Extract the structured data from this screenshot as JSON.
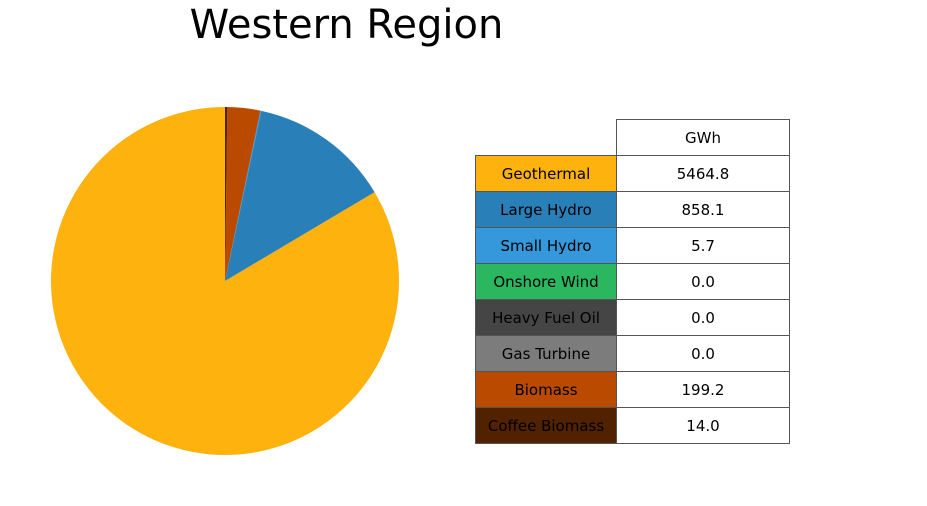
{
  "chart_data": {
    "type": "pie",
    "title": "Western Region",
    "table_header": "GWh",
    "slices": [
      {
        "label": "Geothermal",
        "value": 5464.8,
        "value_text": "5464.8",
        "color": "#fdb20e"
      },
      {
        "label": "Large Hydro",
        "value": 858.1,
        "value_text": "858.1",
        "color": "#2980b9"
      },
      {
        "label": "Small Hydro",
        "value": 5.7,
        "value_text": "5.7",
        "color": "#3498db"
      },
      {
        "label": "Onshore Wind",
        "value": 0.0,
        "value_text": "0.0",
        "color": "#2ab75f"
      },
      {
        "label": "Heavy Fuel Oil",
        "value": 0.0,
        "value_text": "0.0",
        "color": "#454545"
      },
      {
        "label": "Gas Turbine",
        "value": 0.0,
        "value_text": "0.0",
        "color": "#7c7c7c"
      },
      {
        "label": "Biomass",
        "value": 199.2,
        "value_text": "199.2",
        "color": "#ba4a00"
      },
      {
        "label": "Coffee Biomass",
        "value": 14.0,
        "value_text": "14.0",
        "color": "#522200"
      }
    ],
    "start_angle_deg": 90,
    "direction": "clockwise-from-top-reverse"
  }
}
